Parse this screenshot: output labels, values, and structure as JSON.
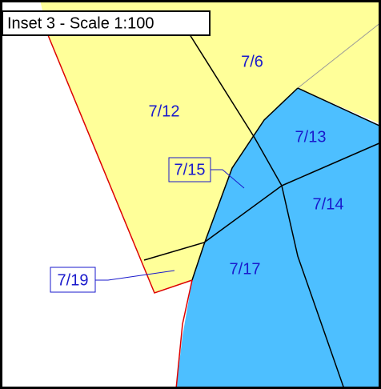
{
  "title": "Inset 3 - Scale 1:100",
  "parcels": [
    {
      "label": "7/6"
    },
    {
      "label": "7/12"
    },
    {
      "label": "7/13"
    },
    {
      "label": "7/15"
    },
    {
      "label": "7/14"
    },
    {
      "label": "7/19"
    },
    {
      "label": "7/17"
    }
  ]
}
